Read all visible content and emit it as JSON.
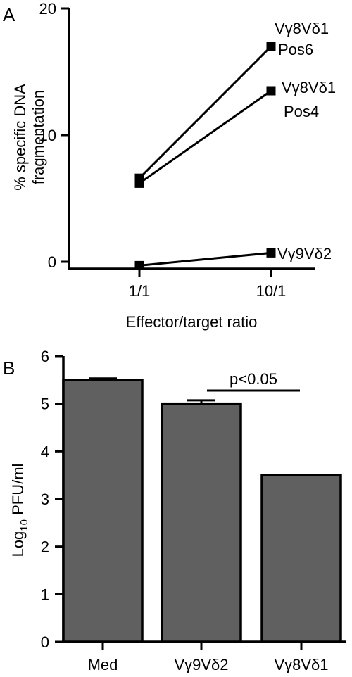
{
  "chart_data": [
    {
      "panel_label": "A",
      "type": "line",
      "xlabel": "Effector/target ratio",
      "ylabel_lines": [
        "% specific DNA",
        "fragmentation"
      ],
      "categories": [
        "1/1",
        "10/1"
      ],
      "ylim": [
        -0.5,
        20
      ],
      "yticks": [
        0,
        10,
        20
      ],
      "series": [
        {
          "name_lines": [
            "Vγ8Vδ1",
            "Pos6"
          ],
          "values": [
            6.6,
            17.0
          ]
        },
        {
          "name_lines": [
            "Vγ8Vδ1",
            "Pos4"
          ],
          "values": [
            6.2,
            13.5
          ]
        },
        {
          "name_lines": [
            "Vγ9Vδ2"
          ],
          "values": [
            -0.3,
            0.7
          ]
        }
      ]
    },
    {
      "panel_label": "B",
      "type": "bar",
      "ylabel_base": "Log",
      "ylabel_sub": "10",
      "ylabel_rest": " PFU/ml",
      "categories": [
        "Med",
        "Vγ9Vδ2",
        "Vγ8Vδ1"
      ],
      "values": [
        5.5,
        5.0,
        3.5
      ],
      "errors": [
        0.03,
        0.07,
        0.0
      ],
      "ylim": [
        0,
        6
      ],
      "yticks": [
        0,
        1,
        2,
        3,
        4,
        5,
        6
      ],
      "bar_color": "#606060",
      "annotation": {
        "text": "p<0.05",
        "between": [
          1,
          2
        ]
      }
    }
  ]
}
